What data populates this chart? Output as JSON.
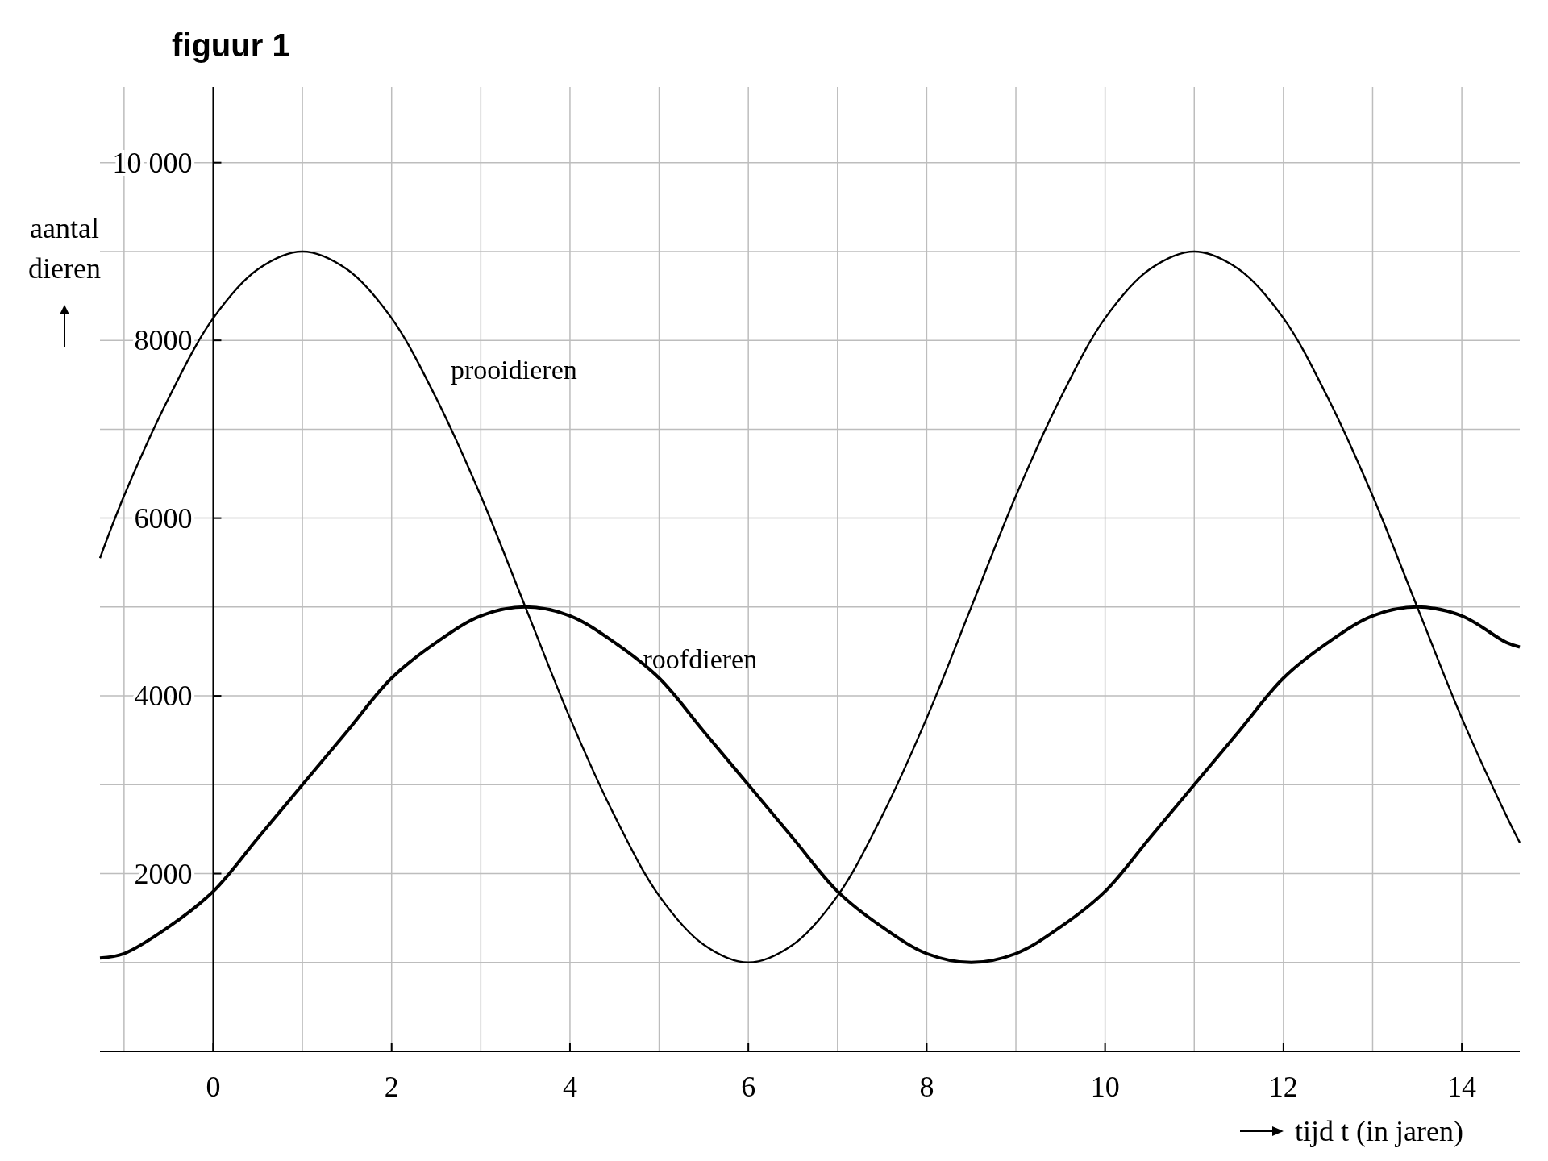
{
  "chart_data": {
    "type": "line",
    "title": "figuur 1",
    "xlabel": "tijd t (in jaren)",
    "ylabel": "aantal dieren",
    "x": [
      -1.27,
      -1,
      -0.5,
      0,
      0.5,
      1,
      1.5,
      2,
      2.5,
      3,
      3.5,
      4,
      4.5,
      5,
      5.5,
      6,
      6.5,
      7,
      7.5,
      8,
      8.5,
      9,
      9.5,
      10,
      10.5,
      11,
      11.5,
      12,
      12.5,
      13,
      13.5,
      14,
      14.5,
      14.65
    ],
    "series": [
      {
        "name": "prooidieren",
        "color": "#000000",
        "values": [
          5550,
          6250,
          7350,
          8250,
          8800,
          9000,
          8800,
          8250,
          7350,
          6250,
          5000,
          3750,
          2650,
          1750,
          1200,
          1000,
          1200,
          1750,
          2650,
          3750,
          5000,
          6250,
          7350,
          8250,
          8800,
          9000,
          8800,
          8250,
          7350,
          6250,
          5000,
          3750,
          2650,
          2350
        ]
      },
      {
        "name": "roofdieren",
        "color": "#000000",
        "values": [
          1050,
          1100,
          1400,
          1800,
          2400,
          3000,
          3600,
          4200,
          4600,
          4900,
          5000,
          4900,
          4600,
          4200,
          3600,
          3000,
          2400,
          1800,
          1400,
          1100,
          1000,
          1100,
          1400,
          1800,
          2400,
          3000,
          3600,
          4200,
          4600,
          4900,
          5000,
          4900,
          4600,
          4550
        ]
      }
    ],
    "xlim": [
      -1.27,
      14.65
    ],
    "ylim": [
      0,
      10850
    ],
    "xticks": [
      {
        "value": -1,
        "label": null
      },
      0,
      {
        "value": 1,
        "label": null
      },
      2,
      {
        "value": 3,
        "label": null
      },
      4,
      {
        "value": 5,
        "label": null
      },
      6,
      {
        "value": 7,
        "label": null
      },
      8,
      {
        "value": 9,
        "label": null
      },
      10,
      {
        "value": 11,
        "label": null
      },
      12,
      {
        "value": 13,
        "label": null
      },
      14
    ],
    "yticks": [
      {
        "value": 0,
        "label": null
      },
      {
        "value": 1000,
        "label": null
      },
      2000,
      {
        "value": 3000,
        "label": null
      },
      4000,
      {
        "value": 5000,
        "label": null
      },
      6000,
      {
        "value": 7000,
        "label": null
      },
      8000,
      {
        "value": 9000,
        "label": null
      },
      {
        "value": 10000,
        "label": "10 000"
      }
    ],
    "grid": true,
    "marker": "none",
    "line_style": "solid"
  }
}
